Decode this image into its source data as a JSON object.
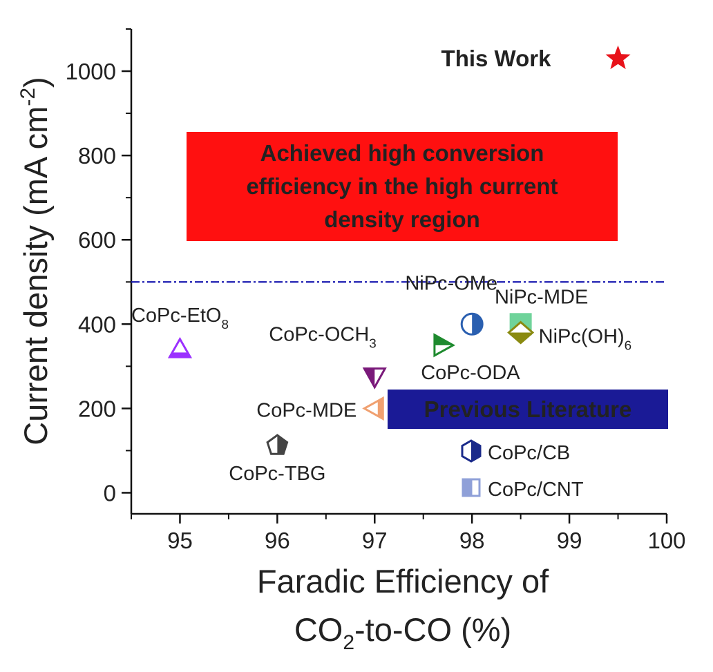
{
  "chart_data": {
    "type": "scatter",
    "xlabel_line1": "Faradic Efficiency of",
    "xlabel_line2": "CO",
    "xlabel_sub": "2",
    "xlabel_rest": "-to-CO (%)",
    "ylabel": "Current density (mA cm",
    "ylabel_sup": "-2",
    "ylabel_close": ")",
    "xlim": [
      94.5,
      100
    ],
    "ylim": [
      -50,
      1100
    ],
    "x_ticks": [
      95,
      96,
      97,
      98,
      99,
      100
    ],
    "x_tick_labels": [
      "95",
      "96",
      "97",
      "98",
      "99",
      "100"
    ],
    "y_ticks": [
      0,
      200,
      400,
      600,
      800,
      1000
    ],
    "y_tick_labels": [
      "0",
      "200",
      "400",
      "600",
      "800",
      "1000"
    ],
    "reference_line_y": 500,
    "this_work": {
      "label": "This Work",
      "x": 99.5,
      "y": 1030,
      "color": "#e8121a",
      "marker": "star"
    },
    "highlight_box": {
      "lines": [
        "Achieved high conversion",
        "efficiency in the high current",
        "density region"
      ],
      "color": "#ff1010"
    },
    "previous_box": {
      "text": "Previous Literature",
      "color": "#1a1a96"
    },
    "points": [
      {
        "name": "CoPc-EtO8",
        "label": "CoPc-EtO",
        "sub": "8",
        "x": 95.0,
        "y": 340,
        "marker": "triangle-up",
        "color": "#9b30ff"
      },
      {
        "name": "CoPc-OCH3",
        "label": "CoPc-OCH",
        "sub": "3",
        "x": 97.0,
        "y": 275,
        "marker": "triangle-down",
        "color": "#7a1a7a"
      },
      {
        "name": "CoPc-MDE",
        "label": "CoPc-MDE",
        "sub": "",
        "x": 97.0,
        "y": 200,
        "marker": "triangle-left",
        "color": "#f0a070"
      },
      {
        "name": "CoPc-TBG",
        "label": "CoPc-TBG",
        "sub": "",
        "x": 96.0,
        "y": 112,
        "marker": "pentagon",
        "color": "#444444"
      },
      {
        "name": "NiPc-OMe",
        "label": "NiPc-OMe",
        "sub": "",
        "x": 98.0,
        "y": 400,
        "marker": "circle-half",
        "color": "#2a5fb0"
      },
      {
        "name": "NiPc-MDE",
        "label": "NiPc-MDE",
        "sub": "",
        "x": 98.5,
        "y": 400,
        "marker": "square",
        "color": "#6fd39a"
      },
      {
        "name": "NiPc(OH)6",
        "label": "NiPc(OH)",
        "sub": "6",
        "x": 98.5,
        "y": 380,
        "marker": "diamond",
        "color": "#8a8a10"
      },
      {
        "name": "CoPc-ODA",
        "label": "CoPc-ODA",
        "sub": "",
        "x": 97.7,
        "y": 350,
        "marker": "triangle-right",
        "color": "#1e8a2e"
      },
      {
        "name": "CoPc/CB",
        "label": "CoPc/CB",
        "sub": "",
        "x": null,
        "y": null,
        "marker": "hexagon-half",
        "color": "#1a2a8a"
      },
      {
        "name": "CoPc/CNT",
        "label": "CoPc/CNT",
        "sub": "",
        "x": null,
        "y": null,
        "marker": "square-half",
        "color": "#8fa0d8"
      }
    ]
  }
}
